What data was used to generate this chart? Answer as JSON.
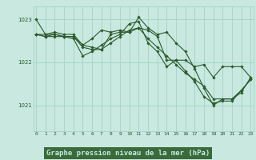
{
  "background_color": "#c8e8e0",
  "plot_bg_color": "#c8e8e0",
  "line_color": "#2d5a2d",
  "grid_color": "#9ecfbf",
  "xlabel": "Graphe pression niveau de la mer (hPa)",
  "xlabel_fontsize": 6.5,
  "xlabel_bg": "#3a6b3a",
  "xlabel_text_color": "#c8e8e0",
  "xticks": [
    0,
    1,
    2,
    3,
    4,
    5,
    6,
    7,
    8,
    9,
    10,
    11,
    12,
    13,
    14,
    15,
    16,
    17,
    18,
    19,
    20,
    21,
    22,
    23
  ],
  "yticks": [
    1021,
    1022,
    1023
  ],
  "ylim": [
    1020.4,
    1023.3
  ],
  "xlim": [
    -0.3,
    23.3
  ],
  "series": [
    [
      1023.0,
      1022.65,
      1022.7,
      1022.65,
      1022.65,
      1022.4,
      1022.55,
      1022.75,
      1022.7,
      1022.75,
      1022.7,
      1023.05,
      1022.8,
      1022.65,
      1022.7,
      1022.45,
      1022.25,
      1021.85,
      1021.4,
      1021.0,
      1021.15,
      1021.15,
      1021.3,
      1021.65
    ],
    [
      1022.65,
      1022.6,
      1022.6,
      1022.6,
      1022.6,
      1022.35,
      1022.3,
      1022.3,
      1022.65,
      1022.7,
      1022.7,
      1022.8,
      1022.75,
      1022.6,
      1022.05,
      1022.05,
      1022.05,
      1021.9,
      1021.95,
      1021.65,
      1021.9,
      1021.9,
      1021.9,
      1021.65
    ],
    [
      1022.65,
      1022.6,
      1022.65,
      1022.6,
      1022.55,
      1022.15,
      1022.25,
      1022.4,
      1022.55,
      1022.65,
      1022.9,
      1022.95,
      1022.45,
      1022.25,
      1021.9,
      1022.05,
      1021.8,
      1021.55,
      1021.2,
      1021.05,
      1021.1,
      1021.1,
      1021.35,
      1021.6
    ],
    [
      1022.65,
      1022.65,
      1022.65,
      1022.6,
      1022.6,
      1022.4,
      1022.35,
      1022.3,
      1022.45,
      1022.6,
      1022.75,
      1022.8,
      1022.55,
      1022.35,
      1022.15,
      1021.95,
      1021.75,
      1021.6,
      1021.45,
      1021.15,
      1021.15,
      1021.15,
      1021.35,
      1021.6
    ]
  ]
}
